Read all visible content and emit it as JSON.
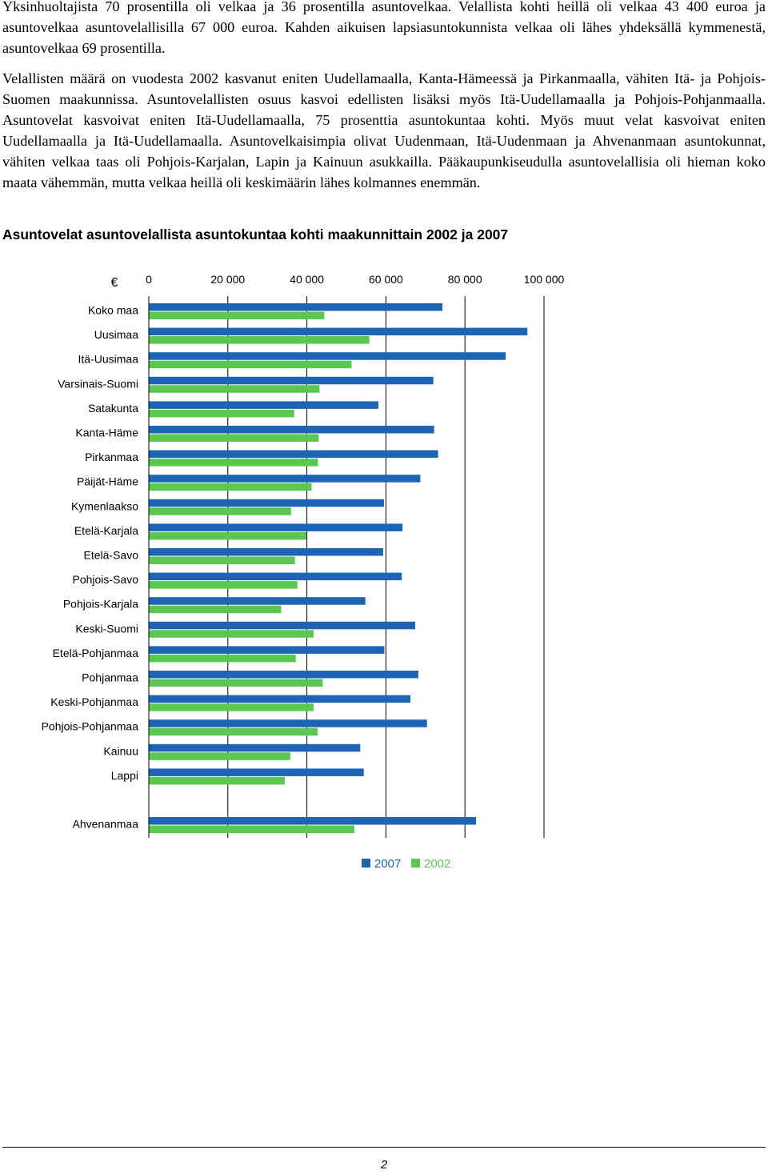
{
  "paragraphs": [
    "Yksinhuoltajista 70 prosentilla oli velkaa ja 36 prosentilla asuntovelkaa. Velallista kohti heillä oli velkaa 43 400 euroa ja asuntovelkaa asuntovelallisilla 67 000 euroa. Kahden aikuisen lapsiasuntokunnista velkaa oli lähes yhdeksällä kymmenestä, asuntovelkaa 69 prosentilla.",
    "Velallisten määrä on vuodesta 2002 kasvanut eniten Uudellamaalla, Kanta-Hämeessä ja Pirkanmaalla, vähiten Itä- ja Pohjois-Suomen maakunnissa. Asuntovelallisten osuus kasvoi edellisten lisäksi myös Itä-Uudellamaalla ja Pohjois-Pohjanmaalla. Asuntovelat kasvoivat eniten Itä-Uudellamaalla, 75 prosenttia asuntokuntaa kohti. Myös muut velat kasvoivat eniten Uudellamaalla ja Itä-Uudellamaalla. Asuntovelkaisimpia olivat Uudenmaan, Itä-Uudenmaan ja Ahvenanmaan asuntokunnat, vähiten velkaa taas oli Pohjois-Karjalan, Lapin ja Kainuun asukkailla. Pääkaupunkiseudulla asuntovelallisia oli hieman koko maata vähemmän, mutta velkaa heillä oli keskimäärin lähes kolmannes enemmän."
  ],
  "footer": {
    "page_number": "2"
  },
  "chart_data": {
    "type": "bar",
    "orientation": "horizontal",
    "title": "Asuntovelat asuntovelallista asuntokuntaa kohti maakunnittain 2002 ja 2007",
    "unit_label": "€",
    "xlim": [
      0,
      100000
    ],
    "xticks": [
      0,
      20000,
      40000,
      60000,
      80000,
      100000
    ],
    "xtick_labels": [
      "0",
      "20 000",
      "40 000",
      "60 000",
      "80 000",
      "100 000"
    ],
    "grid": "vertical",
    "legend_position": "bottom",
    "categories": [
      "Koko maa",
      "Uusimaa",
      "Itä-Uusimaa",
      "Varsinais-Suomi",
      "Satakunta",
      "Kanta-Häme",
      "Pirkanmaa",
      "Päijät-Häme",
      "Kymenlaakso",
      "Etelä-Karjala",
      "Etelä-Savo",
      "Pohjois-Savo",
      "Pohjois-Karjala",
      "Keski-Suomi",
      "Etelä-Pohjanmaa",
      "Pohjanmaa",
      "Keski-Pohjanmaa",
      "Pohjois-Pohjanmaa",
      "Kainuu",
      "Lappi",
      "Ahvenanmaa"
    ],
    "series": [
      {
        "name": "2007",
        "color": "#1e64b4",
        "values": [
          74300,
          95800,
          90300,
          72000,
          58100,
          72200,
          73200,
          68700,
          59500,
          64200,
          59300,
          64000,
          54800,
          67400,
          59600,
          68200,
          66200,
          70400,
          53500,
          54400,
          82800
        ]
      },
      {
        "name": "2002",
        "color": "#5ac850",
        "values": [
          44400,
          55800,
          51300,
          43200,
          36800,
          43000,
          42800,
          41200,
          36000,
          39900,
          37000,
          37600,
          33500,
          41700,
          37200,
          44000,
          41700,
          42700,
          35800,
          34400,
          52000
        ]
      }
    ]
  }
}
